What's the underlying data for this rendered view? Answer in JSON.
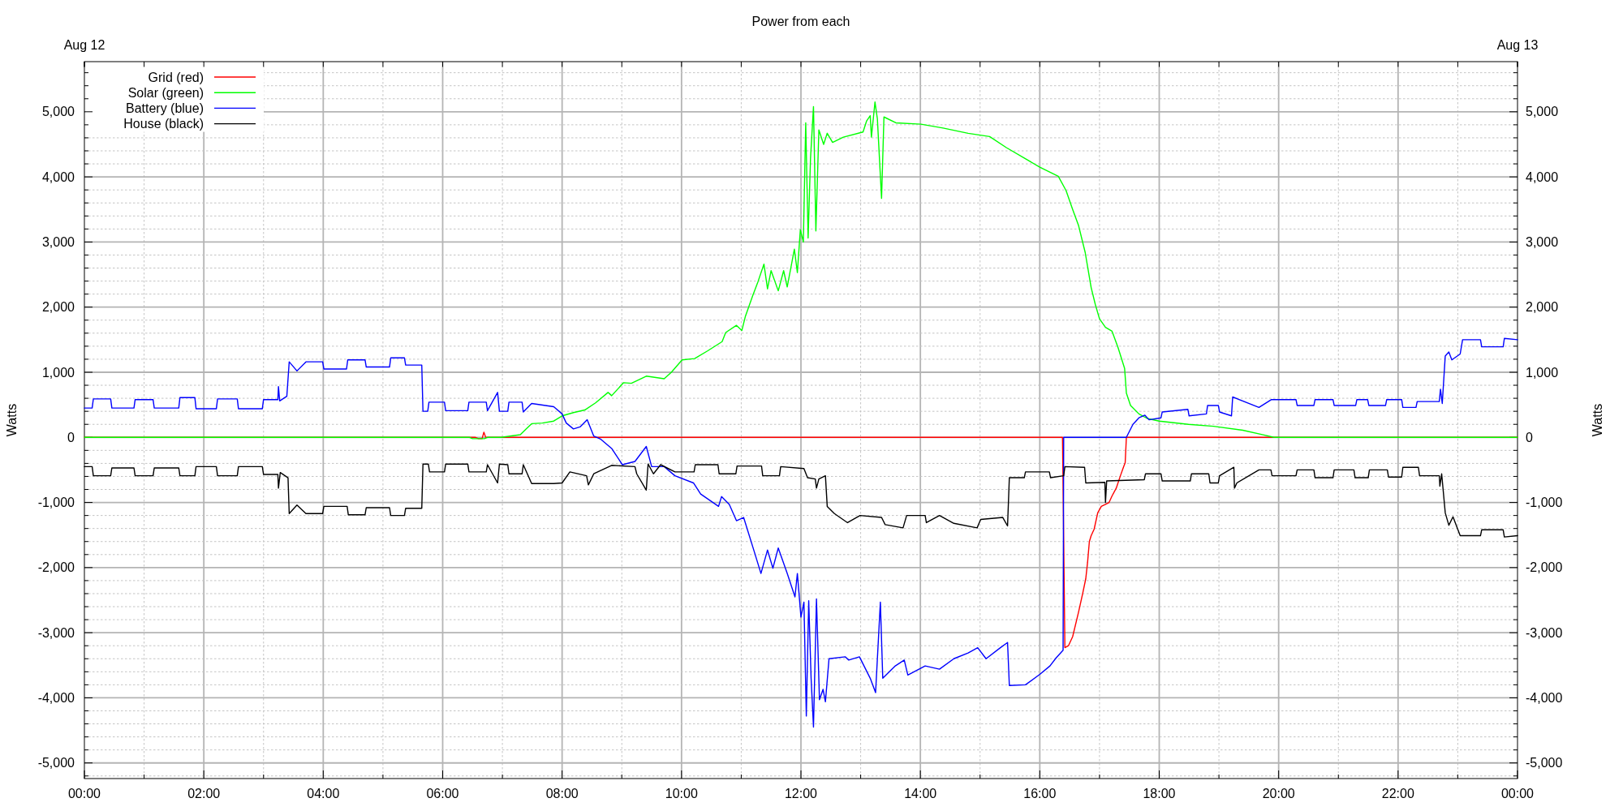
{
  "chart_data": {
    "type": "line",
    "title": "Power from each",
    "ylabel": "Watts",
    "y2label": "Watts",
    "xlim": [
      0,
      24
    ],
    "xticks": [
      {
        "value": 0,
        "label": "00:00"
      },
      {
        "value": 1,
        "label": null
      },
      {
        "value": 2,
        "label": "02:00"
      },
      {
        "value": 3,
        "label": null
      },
      {
        "value": 4,
        "label": "04:00"
      },
      {
        "value": 5,
        "label": null
      },
      {
        "value": 6,
        "label": "06:00"
      },
      {
        "value": 7,
        "label": null
      },
      {
        "value": 8,
        "label": "08:00"
      },
      {
        "value": 9,
        "label": null
      },
      {
        "value": 10,
        "label": "10:00"
      },
      {
        "value": 11,
        "label": null
      },
      {
        "value": 12,
        "label": "12:00"
      },
      {
        "value": 13,
        "label": null
      },
      {
        "value": 14,
        "label": "14:00"
      },
      {
        "value": 15,
        "label": null
      },
      {
        "value": 16,
        "label": "16:00"
      },
      {
        "value": 17,
        "label": null
      },
      {
        "value": 18,
        "label": "18:00"
      },
      {
        "value": 19,
        "label": null
      },
      {
        "value": 20,
        "label": "20:00"
      },
      {
        "value": 21,
        "label": null
      },
      {
        "value": 22,
        "label": "22:00"
      },
      {
        "value": 23,
        "label": null
      },
      {
        "value": 24,
        "label": "00:00"
      }
    ],
    "x2lim": [
      "--08-12",
      "--08-13"
    ],
    "x2ticks": [
      {
        "value": "--08-12",
        "label": "Aug 12"
      },
      {
        "value": "--08-13",
        "label": "Aug 13"
      }
    ],
    "ylim": [
      -5240,
      5770
    ],
    "yticks": [
      {
        "value": -5200,
        "label": null
      },
      {
        "value": -5000,
        "label": "-5,000"
      },
      {
        "value": -4800,
        "label": null
      },
      {
        "value": -4600,
        "label": null
      },
      {
        "value": -4400,
        "label": null
      },
      {
        "value": -4200,
        "label": null
      },
      {
        "value": -4000,
        "label": "-4,000"
      },
      {
        "value": -3800,
        "label": null
      },
      {
        "value": -3600,
        "label": null
      },
      {
        "value": -3400,
        "label": null
      },
      {
        "value": -3200,
        "label": null
      },
      {
        "value": -3000,
        "label": "-3,000"
      },
      {
        "value": -2800,
        "label": null
      },
      {
        "value": -2600,
        "label": null
      },
      {
        "value": -2400,
        "label": null
      },
      {
        "value": -2200,
        "label": null
      },
      {
        "value": -2000,
        "label": "-2,000"
      },
      {
        "value": -1800,
        "label": null
      },
      {
        "value": -1600,
        "label": null
      },
      {
        "value": -1400,
        "label": null
      },
      {
        "value": -1200,
        "label": null
      },
      {
        "value": -1000,
        "label": "-1,000"
      },
      {
        "value": -800,
        "label": null
      },
      {
        "value": -600,
        "label": null
      },
      {
        "value": -400,
        "label": null
      },
      {
        "value": -200,
        "label": null
      },
      0,
      {
        "value": 200,
        "label": null
      },
      {
        "value": 400,
        "label": null
      },
      {
        "value": 600,
        "label": null
      },
      {
        "value": 800,
        "label": null
      },
      {
        "value": 1000,
        "label": "1,000"
      },
      {
        "value": 1200,
        "label": null
      },
      {
        "value": 1400,
        "label": null
      },
      {
        "value": 1600,
        "label": null
      },
      {
        "value": 1800,
        "label": null
      },
      {
        "value": 2000,
        "label": "2,000"
      },
      {
        "value": 2200,
        "label": null
      },
      {
        "value": 2400,
        "label": null
      },
      {
        "value": 2600,
        "label": null
      },
      {
        "value": 2800,
        "label": null
      },
      {
        "value": 3000,
        "label": "3,000"
      },
      {
        "value": 3200,
        "label": null
      },
      {
        "value": 3400,
        "label": null
      },
      {
        "value": 3600,
        "label": null
      },
      {
        "value": 3800,
        "label": null
      },
      {
        "value": 4000,
        "label": "4,000"
      },
      {
        "value": 4200,
        "label": null
      },
      {
        "value": 4400,
        "label": null
      },
      {
        "value": 4600,
        "label": null
      },
      {
        "value": 4800,
        "label": null
      },
      {
        "value": 5000,
        "label": "5,000"
      },
      {
        "value": 5200,
        "label": null
      },
      {
        "value": 5400,
        "label": null
      },
      {
        "value": 5600,
        "label": null
      }
    ],
    "y2lim": [
      -5240,
      5770
    ],
    "y2ticks": [
      {
        "value": -5200,
        "label": null
      },
      {
        "value": -5000,
        "label": "-5,000"
      },
      {
        "value": -4800,
        "label": null
      },
      {
        "value": -4600,
        "label": null
      },
      {
        "value": -4400,
        "label": null
      },
      {
        "value": -4200,
        "label": null
      },
      {
        "value": -4000,
        "label": "-4,000"
      },
      {
        "value": -3800,
        "label": null
      },
      {
        "value": -3600,
        "label": null
      },
      {
        "value": -3400,
        "label": null
      },
      {
        "value": -3200,
        "label": null
      },
      {
        "value": -3000,
        "label": "-3,000"
      },
      {
        "value": -2800,
        "label": null
      },
      {
        "value": -2600,
        "label": null
      },
      {
        "value": -2400,
        "label": null
      },
      {
        "value": -2200,
        "label": null
      },
      {
        "value": -2000,
        "label": "-2,000"
      },
      {
        "value": -1800,
        "label": null
      },
      {
        "value": -1600,
        "label": null
      },
      {
        "value": -1400,
        "label": null
      },
      {
        "value": -1200,
        "label": null
      },
      {
        "value": -1000,
        "label": "-1,000"
      },
      {
        "value": -800,
        "label": null
      },
      {
        "value": -600,
        "label": null
      },
      {
        "value": -400,
        "label": null
      },
      {
        "value": -200,
        "label": null
      },
      0,
      {
        "value": 200,
        "label": null
      },
      {
        "value": 400,
        "label": null
      },
      {
        "value": 600,
        "label": null
      },
      {
        "value": 800,
        "label": null
      },
      {
        "value": 1000,
        "label": "1,000"
      },
      {
        "value": 1200,
        "label": null
      },
      {
        "value": 1400,
        "label": null
      },
      {
        "value": 1600,
        "label": null
      },
      {
        "value": 1800,
        "label": null
      },
      {
        "value": 2000,
        "label": "2,000"
      },
      {
        "value": 2200,
        "label": null
      },
      {
        "value": 2400,
        "label": null
      },
      {
        "value": 2600,
        "label": null
      },
      {
        "value": 2800,
        "label": null
      },
      {
        "value": 3000,
        "label": "3,000"
      },
      {
        "value": 3200,
        "label": null
      },
      {
        "value": 3400,
        "label": null
      },
      {
        "value": 3600,
        "label": null
      },
      {
        "value": 3800,
        "label": null
      },
      {
        "value": 4000,
        "label": "4,000"
      },
      {
        "value": 4200,
        "label": null
      },
      {
        "value": 4400,
        "label": null
      },
      {
        "value": 4600,
        "label": null
      },
      {
        "value": 4800,
        "label": null
      },
      {
        "value": 5000,
        "label": "5,000"
      },
      {
        "value": 5200,
        "label": null
      },
      {
        "value": 5400,
        "label": null
      },
      {
        "value": 5600,
        "label": null
      }
    ],
    "grid": true,
    "legend": "top left",
    "series": [
      {
        "name": "Grid (red)",
        "color": "#ff0000",
        "x": [
          0,
          6.55,
          6.6,
          6.66,
          6.69,
          6.72,
          16.38,
          16.395,
          16.42,
          16.48,
          16.55,
          16.65,
          16.72,
          16.77,
          16.8,
          16.83,
          16.86,
          16.91,
          16.97,
          17.03,
          17.1,
          17.16,
          17.21,
          17.28,
          17.35,
          17.4,
          17.43,
          17.45,
          24
        ],
        "values": [
          0,
          0,
          -20,
          -20,
          80,
          0,
          0,
          -1160,
          -3230,
          -3200,
          -3060,
          -2680,
          -2390,
          -2170,
          -1920,
          -1600,
          -1510,
          -1410,
          -1160,
          -1060,
          -1030,
          -1000,
          -900,
          -780,
          -590,
          -460,
          -390,
          0,
          0
        ]
      },
      {
        "name": "Solar (green)",
        "color": "#00ff00",
        "x": [
          0,
          6.45,
          6.5,
          6.7,
          6.75,
          6.98,
          7.3,
          7.4,
          7.49,
          7.67,
          7.86,
          8.0,
          8.19,
          8.38,
          8.56,
          8.77,
          8.83,
          9.03,
          9.16,
          9.41,
          9.71,
          9.83,
          10.01,
          10.22,
          10.44,
          10.68,
          10.74,
          10.92,
          11.01,
          11.07,
          11.19,
          11.28,
          11.38,
          11.44,
          11.5,
          11.62,
          11.71,
          11.77,
          11.89,
          11.94,
          11.99,
          12.04,
          12.08,
          12.12,
          12.16,
          12.21,
          12.25,
          12.3,
          12.38,
          12.44,
          12.53,
          12.71,
          13.04,
          13.1,
          13.16,
          13.18,
          13.24,
          13.28,
          13.35,
          13.39,
          13.59,
          14.01,
          14.38,
          14.8,
          15.16,
          15.44,
          16.0,
          16.31,
          16.44,
          16.55,
          16.65,
          16.76,
          16.86,
          16.93,
          17.0,
          17.1,
          17.21,
          17.31,
          17.42,
          17.45,
          17.52,
          17.66,
          17.8,
          18.0,
          18.49,
          18.91,
          19.4,
          19.74,
          19.92,
          24
        ],
        "values": [
          0,
          0,
          -20,
          -20,
          0,
          0,
          40,
          130,
          210,
          220,
          250,
          330,
          380,
          420,
          530,
          690,
          640,
          840,
          830,
          940,
          900,
          1000,
          1190,
          1210,
          1330,
          1470,
          1610,
          1720,
          1640,
          1860,
          2170,
          2390,
          2660,
          2280,
          2560,
          2250,
          2560,
          2310,
          2890,
          2530,
          3190,
          3000,
          4830,
          3060,
          4280,
          5080,
          3170,
          4720,
          4500,
          4670,
          4530,
          4610,
          4690,
          4860,
          4940,
          4610,
          5150,
          4890,
          3670,
          4920,
          4830,
          4810,
          4750,
          4670,
          4620,
          4450,
          4150,
          4010,
          3790,
          3500,
          3250,
          2840,
          2300,
          2040,
          1820,
          1690,
          1630,
          1380,
          1060,
          680,
          490,
          360,
          290,
          250,
          200,
          170,
          110,
          40,
          0,
          0
        ]
      },
      {
        "name": "Battery (blue)",
        "color": "#0000ff",
        "x": [
          0,
          0.13,
          0.15,
          0.44,
          0.46,
          0.83,
          0.85,
          1.15,
          1.17,
          1.58,
          1.6,
          1.85,
          1.87,
          2.21,
          2.23,
          2.56,
          2.58,
          2.98,
          3.0,
          3.24,
          3.25,
          3.27,
          3.39,
          3.43,
          3.56,
          3.71,
          3.99,
          4.01,
          4.39,
          4.41,
          4.7,
          4.72,
          5.11,
          5.13,
          5.36,
          5.38,
          5.65,
          5.67,
          5.75,
          5.77,
          6.03,
          6.05,
          6.42,
          6.44,
          6.73,
          6.75,
          6.92,
          6.95,
          7.09,
          7.11,
          7.33,
          7.35,
          7.49,
          7.86,
          8.0,
          8.07,
          8.19,
          8.3,
          8.42,
          8.53,
          8.65,
          8.83,
          9.01,
          9.22,
          9.41,
          9.5,
          9.71,
          9.89,
          10.2,
          10.32,
          10.62,
          10.67,
          10.8,
          10.92,
          11.04,
          11.22,
          11.33,
          11.44,
          11.53,
          11.62,
          11.77,
          11.9,
          11.94,
          12.0,
          12.05,
          12.09,
          12.13,
          12.17,
          12.21,
          12.26,
          12.31,
          12.37,
          12.41,
          12.47,
          12.74,
          12.8,
          12.98,
          13.16,
          13.25,
          13.33,
          13.37,
          13.58,
          13.73,
          13.79,
          14.08,
          14.32,
          14.56,
          14.8,
          14.96,
          15.1,
          15.34,
          15.46,
          15.49,
          15.76,
          16.0,
          16.17,
          16.27,
          16.39,
          16.4,
          17.45,
          17.56,
          17.66,
          17.76,
          17.83,
          18.03,
          18.05,
          18.48,
          18.5,
          18.79,
          18.81,
          18.99,
          19.01,
          19.21,
          19.23,
          19.67,
          19.88,
          20.29,
          20.31,
          20.59,
          20.61,
          20.91,
          20.93,
          21.29,
          21.31,
          21.49,
          21.51,
          21.79,
          21.81,
          22.06,
          22.08,
          22.3,
          22.32,
          22.69,
          22.71,
          22.74,
          22.79,
          22.85,
          22.9,
          23.04,
          23.08,
          23.38,
          23.4,
          23.76,
          23.78,
          24
        ],
        "values": [
          450,
          450,
          590,
          590,
          450,
          450,
          580,
          580,
          450,
          450,
          610,
          610,
          440,
          440,
          590,
          590,
          440,
          440,
          580,
          580,
          780,
          560,
          630,
          1160,
          1020,
          1160,
          1160,
          1050,
          1050,
          1190,
          1190,
          1080,
          1080,
          1220,
          1220,
          1110,
          1110,
          400,
          400,
          540,
          540,
          410,
          410,
          540,
          540,
          410,
          690,
          400,
          400,
          540,
          540,
          390,
          520,
          470,
          360,
          220,
          130,
          160,
          270,
          20,
          -30,
          -170,
          -420,
          -370,
          -140,
          -450,
          -450,
          -590,
          -700,
          -870,
          -1060,
          -910,
          -1030,
          -1280,
          -1230,
          -1760,
          -2090,
          -1730,
          -2010,
          -1700,
          -2090,
          -2450,
          -2090,
          -2760,
          -2530,
          -4280,
          -2510,
          -3700,
          -4450,
          -2480,
          -4030,
          -3870,
          -4060,
          -3400,
          -3370,
          -3420,
          -3370,
          -3700,
          -3920,
          -2530,
          -3700,
          -3510,
          -3420,
          -3650,
          -3510,
          -3560,
          -3400,
          -3310,
          -3230,
          -3400,
          -3230,
          -3150,
          -3810,
          -3800,
          -3640,
          -3510,
          -3390,
          -3270,
          0,
          0,
          200,
          300,
          340,
          270,
          300,
          390,
          430,
          330,
          360,
          490,
          490,
          390,
          330,
          620,
          460,
          580,
          580,
          490,
          490,
          580,
          580,
          490,
          490,
          580,
          580,
          490,
          490,
          580,
          580,
          460,
          460,
          550,
          550,
          740,
          520,
          1250,
          1310,
          1190,
          1280,
          1500,
          1500,
          1390,
          1390,
          1520,
          1500
        ]
      },
      {
        "name": "House (black)",
        "color": "#000000",
        "x": [
          0,
          0.13,
          0.15,
          0.44,
          0.46,
          0.83,
          0.85,
          1.15,
          1.17,
          1.58,
          1.6,
          1.85,
          1.87,
          2.21,
          2.23,
          2.56,
          2.58,
          2.98,
          3.0,
          3.24,
          3.25,
          3.28,
          3.41,
          3.43,
          3.56,
          3.71,
          3.99,
          4.01,
          4.4,
          4.42,
          4.7,
          4.72,
          5.11,
          5.13,
          5.36,
          5.38,
          5.65,
          5.67,
          5.76,
          5.78,
          6.03,
          6.05,
          6.42,
          6.44,
          6.73,
          6.75,
          6.92,
          6.95,
          7.09,
          7.11,
          7.33,
          7.35,
          7.49,
          7.86,
          8.0,
          8.13,
          8.41,
          8.44,
          8.53,
          8.83,
          9.22,
          9.25,
          9.41,
          9.44,
          9.53,
          9.65,
          9.89,
          10.21,
          10.23,
          10.61,
          10.63,
          10.91,
          10.93,
          11.34,
          11.36,
          11.64,
          11.66,
          12.05,
          12.11,
          12.24,
          12.26,
          12.3,
          12.41,
          12.44,
          12.56,
          12.78,
          12.99,
          13.35,
          13.41,
          13.71,
          13.77,
          14.08,
          14.1,
          14.32,
          14.56,
          14.95,
          15.01,
          15.38,
          15.46,
          15.49,
          15.74,
          15.76,
          16.16,
          16.18,
          16.4,
          16.42,
          16.75,
          16.77,
          17.09,
          17.1,
          17.12,
          17.75,
          17.77,
          18.03,
          18.05,
          18.52,
          18.54,
          18.83,
          18.85,
          18.99,
          19.01,
          19.25,
          19.26,
          19.3,
          19.67,
          19.87,
          19.89,
          20.29,
          20.31,
          20.59,
          20.61,
          20.91,
          20.93,
          21.26,
          21.28,
          21.5,
          21.52,
          21.82,
          21.84,
          22.06,
          22.08,
          22.34,
          22.36,
          22.69,
          22.7,
          22.73,
          22.79,
          22.85,
          22.92,
          23.04,
          23.38,
          23.4,
          23.76,
          23.78,
          24
        ],
        "values": [
          -450,
          -450,
          -590,
          -590,
          -470,
          -470,
          -590,
          -590,
          -470,
          -470,
          -590,
          -590,
          -450,
          -450,
          -590,
          -590,
          -450,
          -450,
          -570,
          -570,
          -780,
          -540,
          -620,
          -1170,
          -1040,
          -1170,
          -1170,
          -1060,
          -1060,
          -1190,
          -1190,
          -1080,
          -1080,
          -1200,
          -1200,
          -1090,
          -1090,
          -410,
          -410,
          -530,
          -530,
          -410,
          -410,
          -530,
          -530,
          -420,
          -700,
          -410,
          -420,
          -560,
          -560,
          -420,
          -710,
          -710,
          -700,
          -530,
          -590,
          -730,
          -560,
          -430,
          -450,
          -560,
          -810,
          -410,
          -560,
          -420,
          -530,
          -530,
          -420,
          -420,
          -560,
          -560,
          -440,
          -440,
          -590,
          -590,
          -450,
          -480,
          -620,
          -640,
          -780,
          -640,
          -590,
          -1060,
          -1170,
          -1310,
          -1200,
          -1230,
          -1340,
          -1390,
          -1200,
          -1200,
          -1310,
          -1200,
          -1320,
          -1390,
          -1260,
          -1230,
          -1360,
          -620,
          -620,
          -530,
          -530,
          -620,
          -590,
          -450,
          -460,
          -700,
          -690,
          -1000,
          -670,
          -650,
          -560,
          -560,
          -670,
          -670,
          -560,
          -560,
          -700,
          -700,
          -590,
          -460,
          -780,
          -700,
          -500,
          -500,
          -590,
          -590,
          -500,
          -500,
          -620,
          -620,
          -500,
          -500,
          -620,
          -620,
          -500,
          -500,
          -610,
          -610,
          -460,
          -460,
          -590,
          -590,
          -750,
          -560,
          -1160,
          -1350,
          -1220,
          -1510,
          -1510,
          -1420,
          -1420,
          -1530,
          -1510
        ]
      }
    ]
  }
}
